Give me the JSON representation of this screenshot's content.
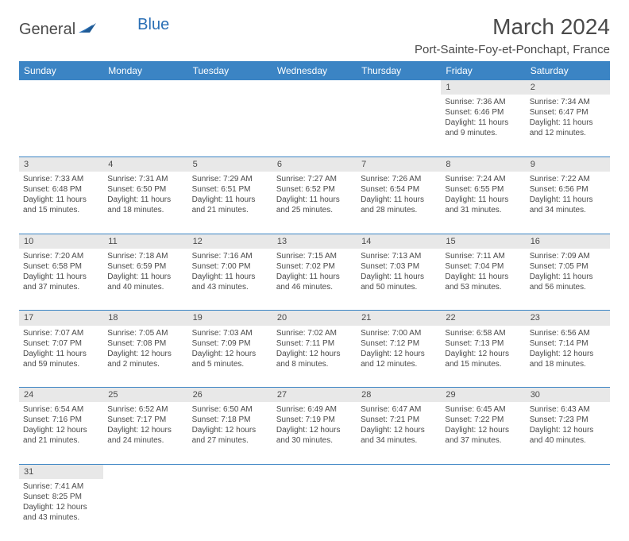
{
  "brand": {
    "part1": "General",
    "part2": "Blue"
  },
  "title": "March 2024",
  "location": "Port-Sainte-Foy-et-Ponchapt, France",
  "colors": {
    "header_bg": "#3b84c4",
    "header_text": "#ffffff",
    "daynum_bg": "#e8e8e8",
    "row_border": "#3b84c4",
    "text": "#4a4a4a",
    "brand_blue": "#2a6fb5"
  },
  "day_headers": [
    "Sunday",
    "Monday",
    "Tuesday",
    "Wednesday",
    "Thursday",
    "Friday",
    "Saturday"
  ],
  "weeks": [
    [
      null,
      null,
      null,
      null,
      null,
      {
        "n": "1",
        "sr": "Sunrise: 7:36 AM",
        "ss": "Sunset: 6:46 PM",
        "d1": "Daylight: 11 hours",
        "d2": "and 9 minutes."
      },
      {
        "n": "2",
        "sr": "Sunrise: 7:34 AM",
        "ss": "Sunset: 6:47 PM",
        "d1": "Daylight: 11 hours",
        "d2": "and 12 minutes."
      }
    ],
    [
      {
        "n": "3",
        "sr": "Sunrise: 7:33 AM",
        "ss": "Sunset: 6:48 PM",
        "d1": "Daylight: 11 hours",
        "d2": "and 15 minutes."
      },
      {
        "n": "4",
        "sr": "Sunrise: 7:31 AM",
        "ss": "Sunset: 6:50 PM",
        "d1": "Daylight: 11 hours",
        "d2": "and 18 minutes."
      },
      {
        "n": "5",
        "sr": "Sunrise: 7:29 AM",
        "ss": "Sunset: 6:51 PM",
        "d1": "Daylight: 11 hours",
        "d2": "and 21 minutes."
      },
      {
        "n": "6",
        "sr": "Sunrise: 7:27 AM",
        "ss": "Sunset: 6:52 PM",
        "d1": "Daylight: 11 hours",
        "d2": "and 25 minutes."
      },
      {
        "n": "7",
        "sr": "Sunrise: 7:26 AM",
        "ss": "Sunset: 6:54 PM",
        "d1": "Daylight: 11 hours",
        "d2": "and 28 minutes."
      },
      {
        "n": "8",
        "sr": "Sunrise: 7:24 AM",
        "ss": "Sunset: 6:55 PM",
        "d1": "Daylight: 11 hours",
        "d2": "and 31 minutes."
      },
      {
        "n": "9",
        "sr": "Sunrise: 7:22 AM",
        "ss": "Sunset: 6:56 PM",
        "d1": "Daylight: 11 hours",
        "d2": "and 34 minutes."
      }
    ],
    [
      {
        "n": "10",
        "sr": "Sunrise: 7:20 AM",
        "ss": "Sunset: 6:58 PM",
        "d1": "Daylight: 11 hours",
        "d2": "and 37 minutes."
      },
      {
        "n": "11",
        "sr": "Sunrise: 7:18 AM",
        "ss": "Sunset: 6:59 PM",
        "d1": "Daylight: 11 hours",
        "d2": "and 40 minutes."
      },
      {
        "n": "12",
        "sr": "Sunrise: 7:16 AM",
        "ss": "Sunset: 7:00 PM",
        "d1": "Daylight: 11 hours",
        "d2": "and 43 minutes."
      },
      {
        "n": "13",
        "sr": "Sunrise: 7:15 AM",
        "ss": "Sunset: 7:02 PM",
        "d1": "Daylight: 11 hours",
        "d2": "and 46 minutes."
      },
      {
        "n": "14",
        "sr": "Sunrise: 7:13 AM",
        "ss": "Sunset: 7:03 PM",
        "d1": "Daylight: 11 hours",
        "d2": "and 50 minutes."
      },
      {
        "n": "15",
        "sr": "Sunrise: 7:11 AM",
        "ss": "Sunset: 7:04 PM",
        "d1": "Daylight: 11 hours",
        "d2": "and 53 minutes."
      },
      {
        "n": "16",
        "sr": "Sunrise: 7:09 AM",
        "ss": "Sunset: 7:05 PM",
        "d1": "Daylight: 11 hours",
        "d2": "and 56 minutes."
      }
    ],
    [
      {
        "n": "17",
        "sr": "Sunrise: 7:07 AM",
        "ss": "Sunset: 7:07 PM",
        "d1": "Daylight: 11 hours",
        "d2": "and 59 minutes."
      },
      {
        "n": "18",
        "sr": "Sunrise: 7:05 AM",
        "ss": "Sunset: 7:08 PM",
        "d1": "Daylight: 12 hours",
        "d2": "and 2 minutes."
      },
      {
        "n": "19",
        "sr": "Sunrise: 7:03 AM",
        "ss": "Sunset: 7:09 PM",
        "d1": "Daylight: 12 hours",
        "d2": "and 5 minutes."
      },
      {
        "n": "20",
        "sr": "Sunrise: 7:02 AM",
        "ss": "Sunset: 7:11 PM",
        "d1": "Daylight: 12 hours",
        "d2": "and 8 minutes."
      },
      {
        "n": "21",
        "sr": "Sunrise: 7:00 AM",
        "ss": "Sunset: 7:12 PM",
        "d1": "Daylight: 12 hours",
        "d2": "and 12 minutes."
      },
      {
        "n": "22",
        "sr": "Sunrise: 6:58 AM",
        "ss": "Sunset: 7:13 PM",
        "d1": "Daylight: 12 hours",
        "d2": "and 15 minutes."
      },
      {
        "n": "23",
        "sr": "Sunrise: 6:56 AM",
        "ss": "Sunset: 7:14 PM",
        "d1": "Daylight: 12 hours",
        "d2": "and 18 minutes."
      }
    ],
    [
      {
        "n": "24",
        "sr": "Sunrise: 6:54 AM",
        "ss": "Sunset: 7:16 PM",
        "d1": "Daylight: 12 hours",
        "d2": "and 21 minutes."
      },
      {
        "n": "25",
        "sr": "Sunrise: 6:52 AM",
        "ss": "Sunset: 7:17 PM",
        "d1": "Daylight: 12 hours",
        "d2": "and 24 minutes."
      },
      {
        "n": "26",
        "sr": "Sunrise: 6:50 AM",
        "ss": "Sunset: 7:18 PM",
        "d1": "Daylight: 12 hours",
        "d2": "and 27 minutes."
      },
      {
        "n": "27",
        "sr": "Sunrise: 6:49 AM",
        "ss": "Sunset: 7:19 PM",
        "d1": "Daylight: 12 hours",
        "d2": "and 30 minutes."
      },
      {
        "n": "28",
        "sr": "Sunrise: 6:47 AM",
        "ss": "Sunset: 7:21 PM",
        "d1": "Daylight: 12 hours",
        "d2": "and 34 minutes."
      },
      {
        "n": "29",
        "sr": "Sunrise: 6:45 AM",
        "ss": "Sunset: 7:22 PM",
        "d1": "Daylight: 12 hours",
        "d2": "and 37 minutes."
      },
      {
        "n": "30",
        "sr": "Sunrise: 6:43 AM",
        "ss": "Sunset: 7:23 PM",
        "d1": "Daylight: 12 hours",
        "d2": "and 40 minutes."
      }
    ],
    [
      {
        "n": "31",
        "sr": "Sunrise: 7:41 AM",
        "ss": "Sunset: 8:25 PM",
        "d1": "Daylight: 12 hours",
        "d2": "and 43 minutes."
      },
      null,
      null,
      null,
      null,
      null,
      null
    ]
  ]
}
